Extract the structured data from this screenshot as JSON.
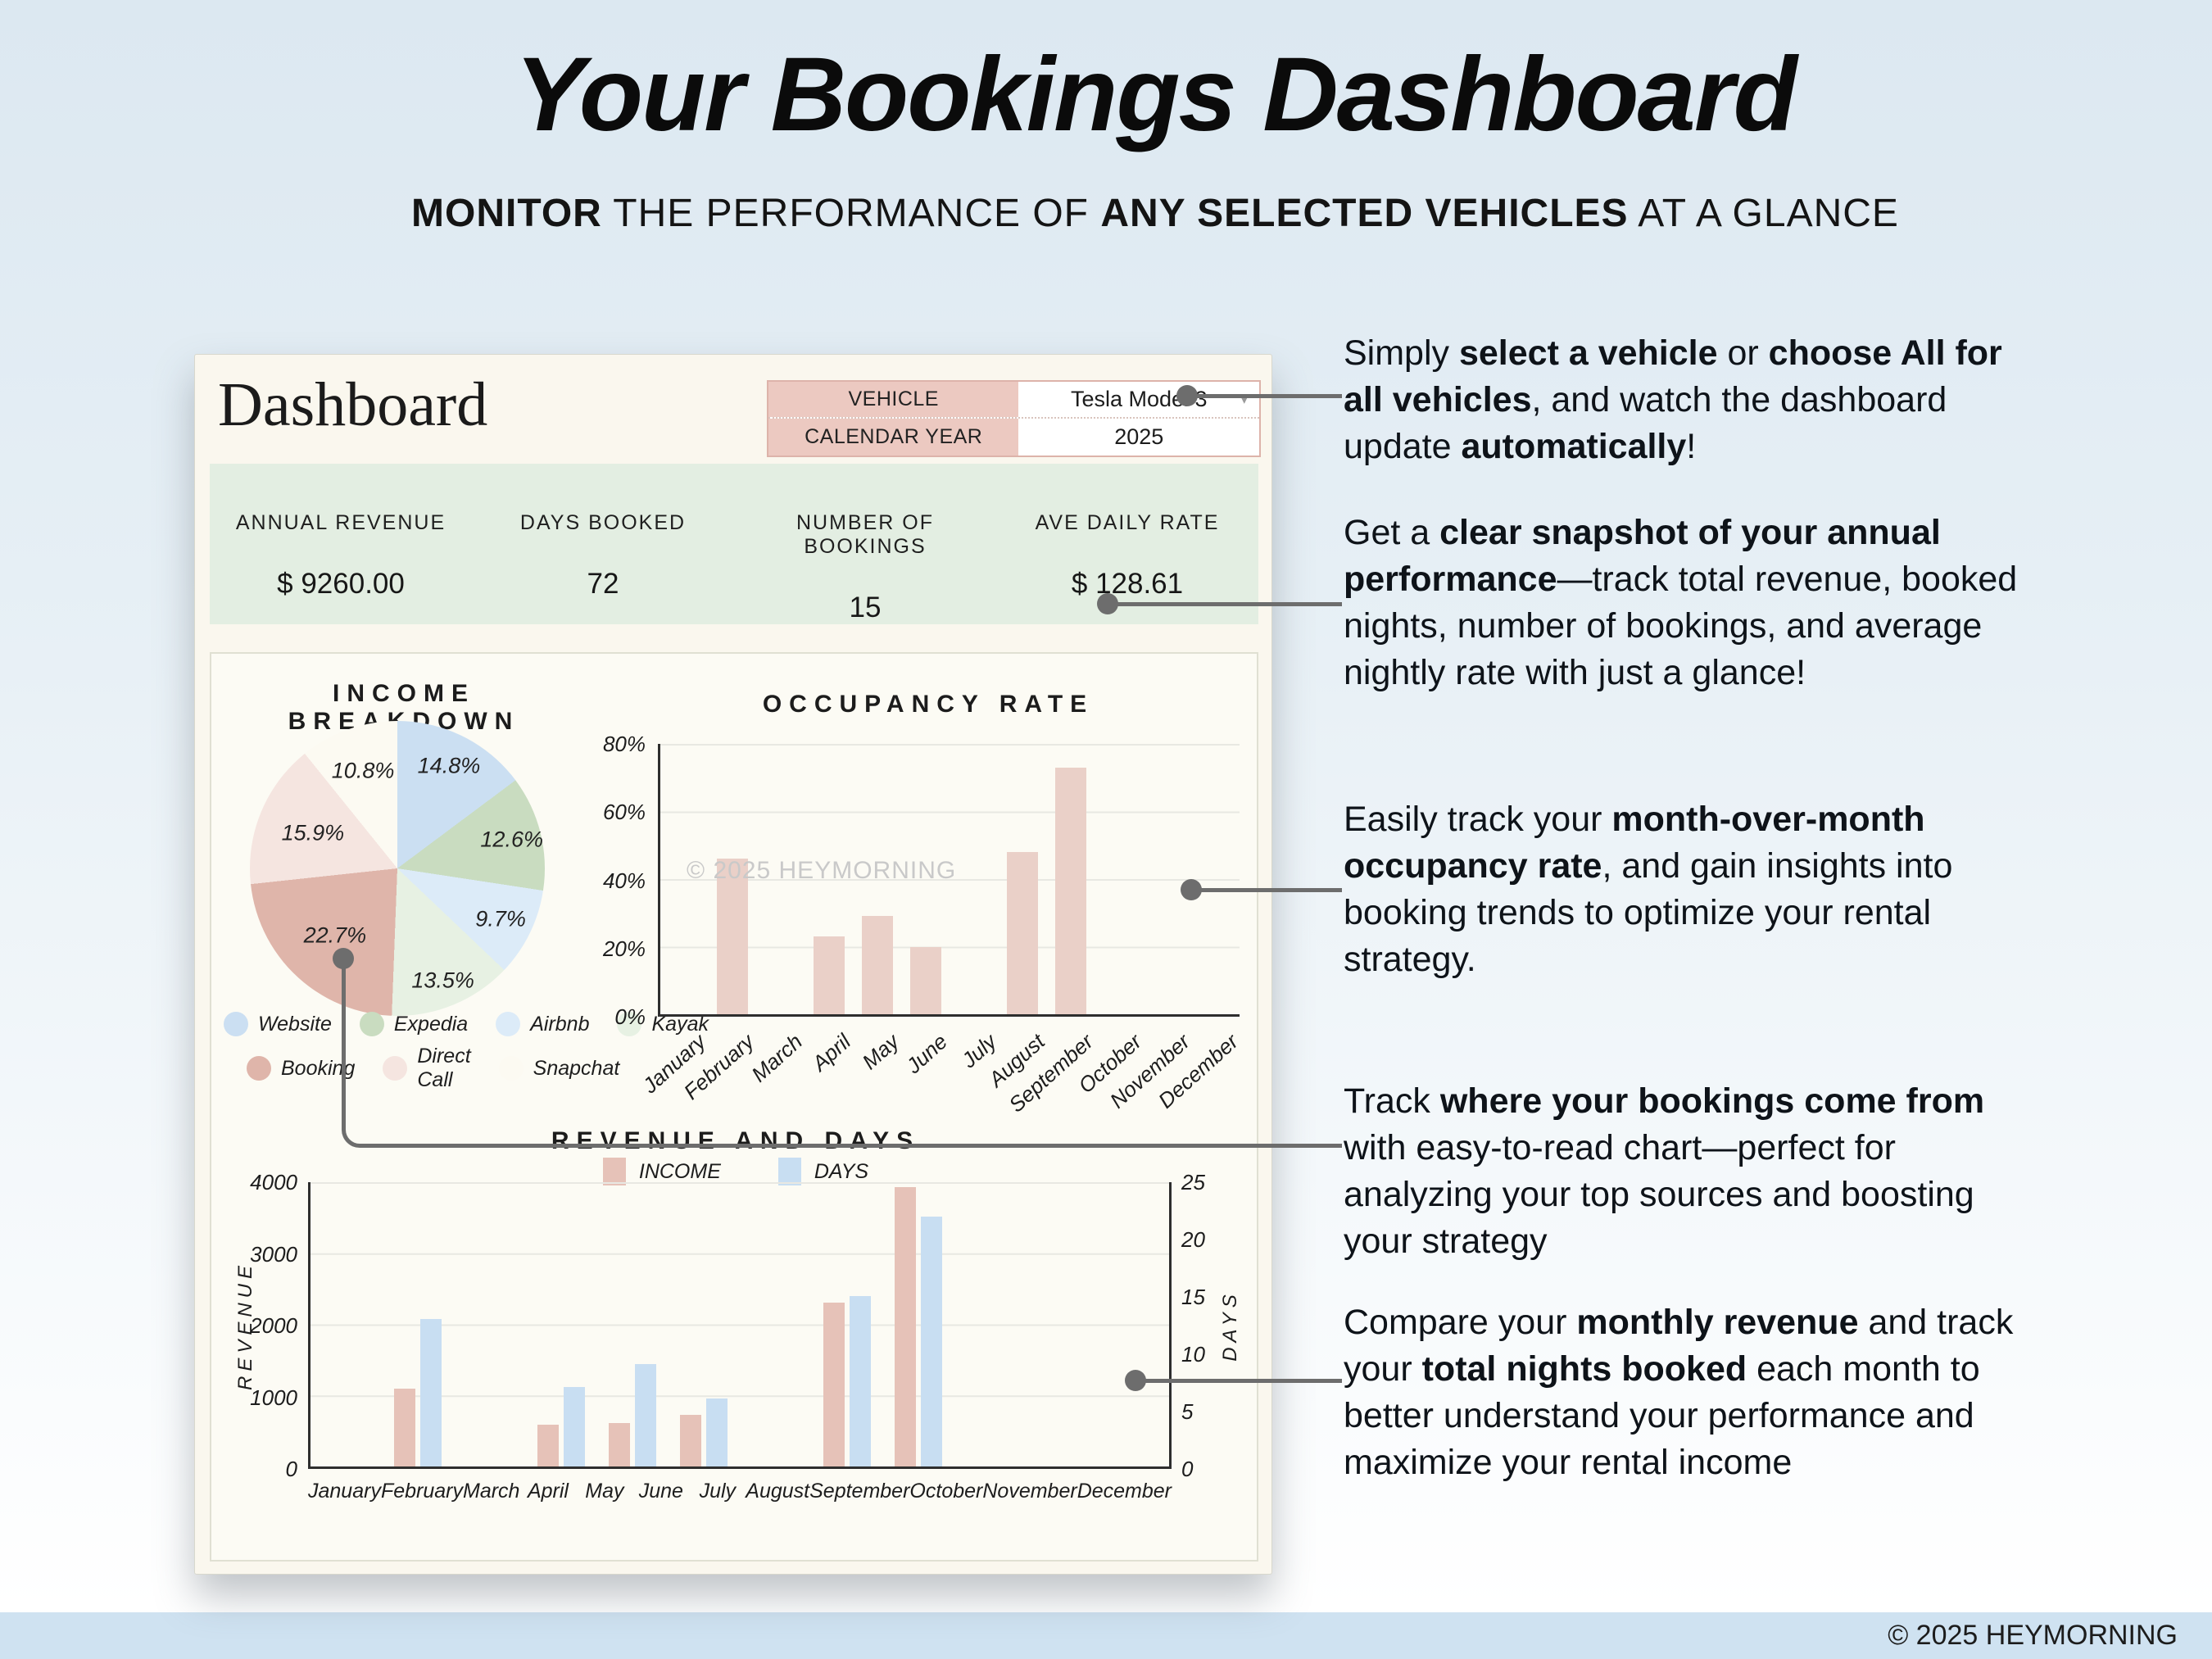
{
  "page": {
    "title": "Your Bookings Dashboard",
    "subtitle_segments": [
      {
        "t": "MONITOR",
        "b": true
      },
      {
        "t": " THE PERFORMANCE OF ",
        "b": false
      },
      {
        "t": "ANY SELECTED VEHICLES",
        "b": true
      },
      {
        "t": " AT A GLANCE",
        "b": false
      }
    ],
    "footer": "© 2025 HEYMORNING"
  },
  "dashboard": {
    "title": "Dashboard",
    "selectors": [
      {
        "label": "VEHICLE",
        "value": "Tesla Model 3"
      },
      {
        "label": "CALENDAR YEAR",
        "value": "2025"
      }
    ],
    "kpis": [
      {
        "label": "ANNUAL REVENUE",
        "value": "$ 9260.00"
      },
      {
        "label": "DAYS BOOKED",
        "value": "72"
      },
      {
        "label": "NUMBER OF BOOKINGS",
        "value": "15"
      },
      {
        "label": "AVE DAILY RATE",
        "value": "$ 128.61"
      }
    ],
    "watermark": "© 2025 HEYMORNING"
  },
  "annotations": [
    {
      "segments": [
        {
          "t": "Simply ",
          "b": false
        },
        {
          "t": "select a vehicle",
          "b": true
        },
        {
          "t": " or ",
          "b": false
        },
        {
          "t": "choose All for all vehicles",
          "b": true
        },
        {
          "t": ", and watch the dashboard update ",
          "b": false
        },
        {
          "t": "automatically",
          "b": true
        },
        {
          "t": "!",
          "b": false
        }
      ]
    },
    {
      "segments": [
        {
          "t": "Get a ",
          "b": false
        },
        {
          "t": "clear snapshot of your annual performance",
          "b": true
        },
        {
          "t": "—track total revenue, booked nights, number of bookings, and average nightly rate with just a glance!",
          "b": false
        }
      ]
    },
    {
      "segments": [
        {
          "t": "Easily track your ",
          "b": false
        },
        {
          "t": "month-over-month occupancy rate",
          "b": true
        },
        {
          "t": ", and gain insights into booking trends to optimize your rental strategy.",
          "b": false
        }
      ]
    },
    {
      "segments": [
        {
          "t": "Track ",
          "b": false
        },
        {
          "t": "where your bookings come from",
          "b": true
        },
        {
          "t": " with easy-to-read chart—perfect for analyzing your top sources and boosting your strategy",
          "b": false
        }
      ]
    },
    {
      "segments": [
        {
          "t": "Compare your ",
          "b": false
        },
        {
          "t": "monthly revenue",
          "b": true
        },
        {
          "t": " and track your ",
          "b": false
        },
        {
          "t": "total nights booked",
          "b": true
        },
        {
          "t": " each month to better understand your performance and maximize your rental income",
          "b": false
        }
      ]
    }
  ],
  "chart_data": [
    {
      "type": "pie",
      "title": "INCOME BREAKDOWN",
      "slices": [
        {
          "label": "Website",
          "pct": 14.8,
          "color": "#cbdff2"
        },
        {
          "label": "Expedia",
          "pct": 12.6,
          "color": "#c9dcc0"
        },
        {
          "label": "Airbnb",
          "pct": 9.7,
          "color": "#dcebf8"
        },
        {
          "label": "Kayak",
          "pct": 13.5,
          "color": "#e7f1e3"
        },
        {
          "label": "Booking",
          "pct": 22.7,
          "color": "#dfb5aa"
        },
        {
          "label": "Direct Call",
          "pct": 15.9,
          "color": "#f5e5e0"
        },
        {
          "label": "Snapchat",
          "pct": 10.8,
          "color": "#fcfaf2"
        }
      ],
      "legend_columns": 4,
      "legend_position": "bottom"
    },
    {
      "type": "bar",
      "title": "OCCUPANCY RATE",
      "categories": [
        "January",
        "February",
        "March",
        "April",
        "May",
        "June",
        "July",
        "August",
        "September",
        "October",
        "November",
        "December"
      ],
      "values": [
        0,
        46,
        0,
        23,
        29,
        20,
        0,
        48,
        73,
        0,
        0,
        0
      ],
      "unit": "%",
      "ylim": [
        0,
        80
      ],
      "yticks": [
        "80%",
        "60%",
        "40%",
        "20%",
        "0%"
      ],
      "bar_color": "#ead0c8",
      "grid": true
    },
    {
      "type": "bar",
      "title": "REVENUE AND DAYS",
      "categories": [
        "January",
        "February",
        "March",
        "April",
        "May",
        "June",
        "July",
        "August",
        "September",
        "October",
        "November",
        "December"
      ],
      "series": [
        {
          "name": "INCOME",
          "axis": "left",
          "color": "#e6c2b8",
          "values": [
            0,
            1100,
            0,
            590,
            610,
            730,
            0,
            2300,
            3930,
            0,
            0,
            0
          ]
        },
        {
          "name": "DAYS",
          "axis": "right",
          "color": "#c8def2",
          "values": [
            0,
            13,
            0,
            7,
            9,
            6,
            0,
            15,
            22,
            0,
            0,
            0
          ]
        }
      ],
      "left_axis": {
        "label": "REVENUE",
        "ticks": [
          "4000",
          "3000",
          "2000",
          "1000",
          "0"
        ],
        "max": 4000
      },
      "right_axis": {
        "label": "DAYS",
        "ticks": [
          "25",
          "20",
          "15",
          "10",
          "5",
          "0"
        ],
        "max": 25
      },
      "grid": true,
      "legend_position": "top"
    }
  ],
  "colors": {
    "page_bg_top": "#dce8f1",
    "page_bg_bottom": "#ffffff",
    "footer_bar": "#cfe2f1",
    "card_bg": "#faf7ee",
    "panel_bg": "#fcfbf4",
    "selector_pink": "#ecc9c1",
    "selector_border": "#ddb3aa",
    "kpi_band": "#e3eee2",
    "connector": "#6d6d6d",
    "watermark": "#c9c9c9",
    "axis": "#2e2e2e",
    "grid": "#e8e8e2",
    "occ_bar": "#ead0c8"
  }
}
